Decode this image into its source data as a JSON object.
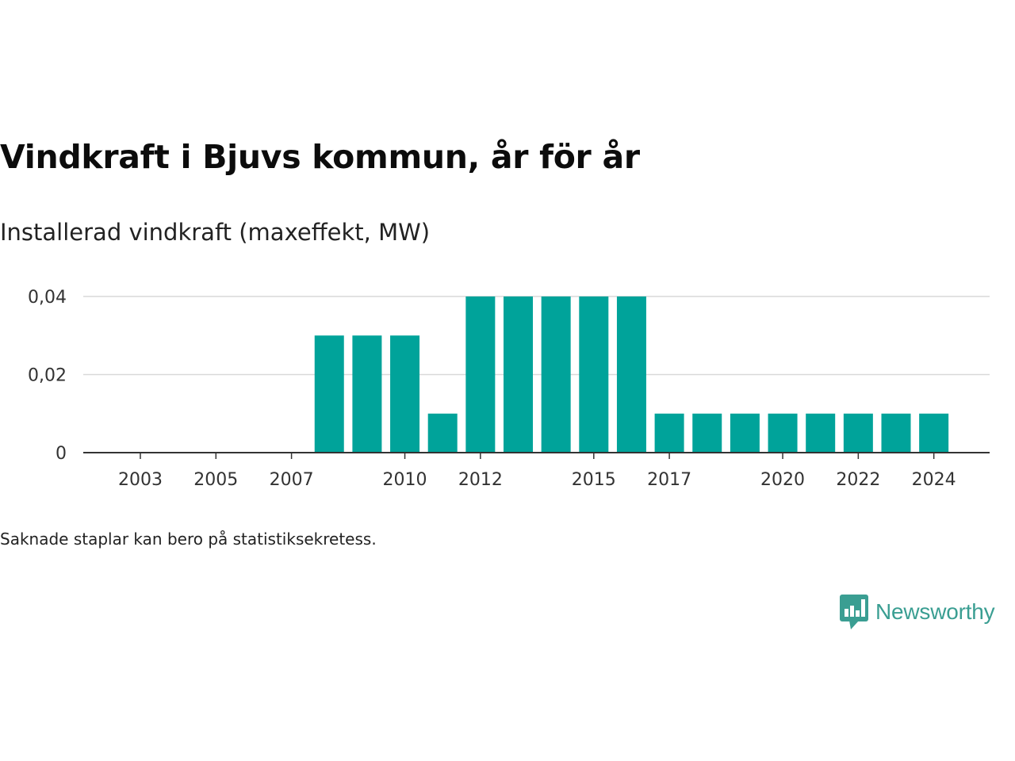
{
  "title": "Vindkraft i Bjuvs kommun, år för år",
  "subtitle": "Installerad vindkraft (maxeffekt, MW)",
  "footnote": "Saknade staplar kan bero på statistiksekretess.",
  "brand": {
    "name": "Newsworthy",
    "icon": "newsworthy-logo-icon",
    "color": "#3a9e92"
  },
  "chart_data": {
    "type": "bar",
    "title": "Vindkraft i Bjuvs kommun, år för år",
    "subtitle": "Installerad vindkraft (maxeffekt, MW)",
    "categories": [
      "2003",
      "2004",
      "2005",
      "2006",
      "2007",
      "2008",
      "2009",
      "2010",
      "2011",
      "2012",
      "2013",
      "2014",
      "2015",
      "2016",
      "2017",
      "2018",
      "2019",
      "2020",
      "2021",
      "2022",
      "2023",
      "2024"
    ],
    "values": [
      0,
      0,
      0,
      0,
      0,
      0.03,
      0.03,
      0.03,
      0.01,
      0.04,
      0.04,
      0.04,
      0.04,
      0.04,
      0.01,
      0.01,
      0.01,
      0.01,
      0.01,
      0.01,
      0.01,
      0.01
    ],
    "x_tick_labels": [
      "2003",
      "2005",
      "2007",
      "2010",
      "2012",
      "2015",
      "2017",
      "2020",
      "2022",
      "2024"
    ],
    "y_ticks": [
      0,
      0.02,
      0.04
    ],
    "y_tick_labels": [
      "0",
      "0,02",
      "0,04"
    ],
    "ylim": [
      0,
      0.04
    ],
    "xlabel": "",
    "ylabel": "",
    "grid": true,
    "bar_color": "#00a39a"
  }
}
